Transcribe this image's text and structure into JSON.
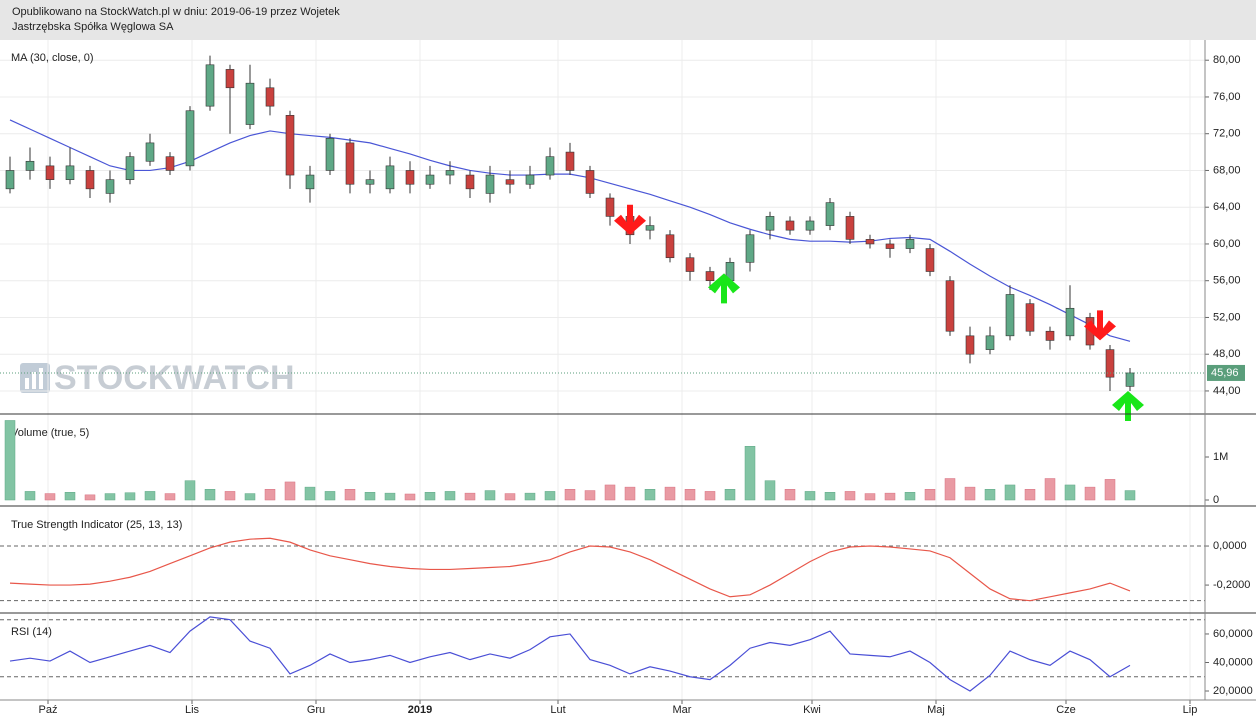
{
  "header": {
    "line1": "Opublikowano na StockWatch.pl w dniu: 2019-06-19 przez Wojetek",
    "line2": "Jastrzębska Spółka Węglowa SA"
  },
  "watermark": "STOCKWATCH",
  "chart_data": [
    {
      "type": "candlestick",
      "title": "MA (30, close, 0)",
      "xlim": [
        -0.5,
        59.75
      ],
      "ylim": [
        41.6,
        82.2
      ],
      "yticks": [
        {
          "value": 44,
          "label": "44,00"
        },
        {
          "value": 48,
          "label": "48,00"
        },
        {
          "value": 52,
          "label": "52,00"
        },
        {
          "value": 56,
          "label": "56,00"
        },
        {
          "value": 60,
          "label": "60,00"
        },
        {
          "value": 64,
          "label": "64,00"
        },
        {
          "value": 68,
          "label": "68,00"
        },
        {
          "value": 72,
          "label": "72,00"
        },
        {
          "value": 76,
          "label": "76,00"
        },
        {
          "value": 80,
          "label": "80,00"
        }
      ],
      "up_color": "#5fa886",
      "down_color": "#c9413e",
      "open": [
        66.0,
        68.0,
        68.5,
        67.0,
        68.0,
        65.5,
        67.0,
        69.0,
        69.5,
        68.5,
        75.0,
        79.0,
        73.0,
        77.0,
        74.0,
        66.0,
        68.0,
        71.0,
        66.5,
        66.0,
        68.0,
        66.5,
        67.5,
        67.5,
        65.5,
        67.0,
        66.5,
        67.5,
        70.0,
        68.0,
        65.0,
        63.0,
        61.5,
        61.0,
        58.5,
        57.0,
        56.0,
        58.0,
        61.5,
        62.5,
        61.5,
        62.0,
        63.0,
        60.5,
        60.0,
        59.5,
        59.5,
        56.0,
        50.0,
        48.5,
        50.0,
        53.5,
        50.5,
        50.0,
        52.0,
        48.5,
        44.5
      ],
      "high": [
        69.5,
        70.5,
        69.5,
        70.5,
        68.5,
        68.0,
        70.0,
        72.0,
        70.0,
        75.0,
        80.5,
        79.5,
        79.5,
        78.0,
        74.5,
        68.5,
        72.0,
        71.5,
        68.0,
        69.5,
        69.0,
        68.5,
        69.0,
        68.0,
        68.5,
        68.0,
        68.5,
        70.5,
        71.0,
        68.5,
        65.5,
        63.5,
        63.0,
        61.5,
        59.0,
        57.5,
        58.5,
        61.5,
        63.5,
        63.0,
        63.0,
        65.0,
        63.5,
        61.0,
        60.5,
        61.0,
        60.0,
        56.5,
        51.0,
        51.0,
        55.5,
        54.0,
        51.0,
        55.5,
        52.5,
        49.0,
        46.5
      ],
      "low": [
        65.5,
        67.0,
        66.0,
        66.5,
        65.0,
        64.5,
        66.5,
        68.5,
        67.5,
        68.0,
        74.5,
        72.0,
        72.5,
        74.0,
        66.0,
        64.5,
        67.5,
        65.5,
        65.5,
        65.5,
        65.5,
        66.0,
        66.5,
        65.0,
        64.5,
        65.5,
        66.0,
        67.0,
        67.5,
        65.0,
        62.0,
        60.0,
        60.5,
        58.0,
        56.0,
        55.0,
        55.5,
        57.0,
        60.5,
        61.0,
        61.0,
        61.5,
        60.0,
        59.5,
        58.5,
        59.0,
        56.5,
        50.0,
        47.0,
        48.0,
        49.5,
        50.0,
        48.5,
        49.5,
        48.5,
        44.0,
        44.0
      ],
      "close": [
        68.0,
        69.0,
        67.0,
        68.5,
        66.0,
        67.0,
        69.5,
        71.0,
        68.0,
        74.5,
        79.5,
        77.0,
        77.5,
        75.0,
        67.5,
        67.5,
        71.5,
        66.5,
        67.0,
        68.5,
        66.5,
        67.5,
        68.0,
        66.0,
        67.5,
        66.5,
        67.5,
        69.5,
        68.0,
        65.5,
        63.0,
        61.0,
        62.0,
        58.5,
        57.0,
        56.0,
        58.0,
        61.0,
        63.0,
        61.5,
        62.5,
        64.5,
        60.5,
        60.0,
        59.5,
        60.5,
        57.0,
        50.5,
        48.0,
        50.0,
        54.5,
        50.5,
        49.5,
        53.0,
        49.0,
        45.5,
        45.96
      ],
      "ma": {
        "color": "#4a56d6",
        "values": [
          73.5,
          72.5,
          71.5,
          70.5,
          69.5,
          68.5,
          68,
          68,
          68.3,
          69,
          70,
          71,
          71.8,
          72.3,
          72,
          71.8,
          71.6,
          71.3,
          71,
          70.4,
          69.8,
          69.1,
          68.5,
          68,
          67.7,
          67.5,
          67.5,
          67.6,
          67.6,
          67.2,
          66.6,
          66,
          65.4,
          64.7,
          64,
          63.2,
          62.3,
          61.6,
          61,
          60.5,
          60.3,
          60.3,
          60.2,
          60.3,
          60.6,
          60.7,
          60.5,
          59.2,
          57.8,
          56.5,
          55.3,
          54.4,
          53.4,
          52.3,
          51.2,
          50,
          49.4
        ]
      },
      "last_price": {
        "value": 45.96,
        "label": "45,96",
        "color": "#5a9e7b"
      },
      "signals": [
        {
          "x": 31,
          "y": 61,
          "type": "sell",
          "color": "#ff1a1a"
        },
        {
          "x": 35.7,
          "y": 56.8,
          "type": "buy",
          "color": "#19e619"
        },
        {
          "x": 54.5,
          "y": 49.5,
          "type": "sell",
          "color": "#ff1a1a"
        },
        {
          "x": 55.9,
          "y": 44.0,
          "type": "buy",
          "color": "#19e619"
        }
      ]
    },
    {
      "type": "bar",
      "title": "Volume (true, 5)",
      "xlim": [
        -0.5,
        59.75
      ],
      "ylim": [
        -116000,
        1977000
      ],
      "yticks": [
        0,
        {
          "value": 1000000,
          "label": "1M"
        }
      ],
      "up_color": "#82c4a4",
      "down_color": "#e99aa3",
      "values": [
        1850000,
        200000,
        150000,
        180000,
        120000,
        150000,
        170000,
        200000,
        150000,
        450000,
        250000,
        200000,
        150000,
        250000,
        420000,
        300000,
        200000,
        250000,
        180000,
        160000,
        140000,
        180000,
        200000,
        160000,
        220000,
        150000,
        160000,
        200000,
        250000,
        220000,
        350000,
        300000,
        250000,
        300000,
        250000,
        200000,
        250000,
        1250000,
        450000,
        250000,
        200000,
        180000,
        200000,
        150000,
        160000,
        180000,
        250000,
        500000,
        300000,
        250000,
        350000,
        250000,
        500000,
        350000,
        300000,
        480000,
        220000
      ]
    },
    {
      "type": "line",
      "title": "True Strength Indicator (25, 13, 13)",
      "xlim": [
        -0.5,
        59.75
      ],
      "ylim": [
        -0.338,
        0.2
      ],
      "yticks": [
        {
          "value": 0,
          "label": "0,0000"
        },
        {
          "value": -0.2,
          "label": "-0,2000"
        }
      ],
      "levels": [
        0,
        -0.28
      ],
      "color": "#e8574a",
      "values": [
        -0.19,
        -0.195,
        -0.2,
        -0.2,
        -0.195,
        -0.18,
        -0.16,
        -0.13,
        -0.09,
        -0.05,
        -0.01,
        0.02,
        0.035,
        0.04,
        0.02,
        -0.02,
        -0.05,
        -0.07,
        -0.09,
        -0.105,
        -0.115,
        -0.12,
        -0.12,
        -0.115,
        -0.11,
        -0.105,
        -0.09,
        -0.07,
        -0.03,
        0.0,
        -0.005,
        -0.03,
        -0.07,
        -0.12,
        -0.17,
        -0.22,
        -0.26,
        -0.25,
        -0.2,
        -0.14,
        -0.08,
        -0.03,
        -0.005,
        0.0,
        -0.005,
        -0.015,
        -0.025,
        -0.06,
        -0.14,
        -0.22,
        -0.27,
        -0.28,
        -0.26,
        -0.24,
        -0.22,
        -0.19,
        -0.23
      ]
    },
    {
      "type": "line",
      "title": "RSI (14)",
      "xlim": [
        -0.5,
        59.75
      ],
      "ylim": [
        13.7,
        74
      ],
      "yticks": [
        {
          "value": 20,
          "label": "20,0000"
        },
        {
          "value": 40,
          "label": "40,0000"
        },
        {
          "value": 60,
          "label": "60,0000"
        }
      ],
      "levels": [
        70,
        30
      ],
      "color": "#4a4fd6",
      "xticks": [
        {
          "value": 1.9,
          "label": "Paź"
        },
        {
          "value": 9.1,
          "label": "Lis"
        },
        {
          "value": 15.3,
          "label": "Gru"
        },
        {
          "value": 20.5,
          "label": "2019"
        },
        {
          "value": 27.4,
          "label": "Lut"
        },
        {
          "value": 33.6,
          "label": "Mar"
        },
        {
          "value": 40.1,
          "label": "Kwi"
        },
        {
          "value": 46.3,
          "label": "Maj"
        },
        {
          "value": 52.8,
          "label": "Cze"
        },
        {
          "value": 59,
          "label": "Lip"
        }
      ],
      "values": [
        41,
        43,
        41,
        48,
        40,
        44,
        48,
        52,
        47,
        62,
        72,
        70,
        55,
        50,
        32,
        38,
        46,
        40,
        42,
        45,
        40,
        44,
        47,
        42,
        46,
        43,
        49,
        58,
        60,
        42,
        38,
        32,
        37,
        34,
        30,
        28,
        38,
        50,
        54,
        52,
        56,
        62,
        46,
        45,
        44,
        48,
        40,
        28,
        20,
        31,
        48,
        42,
        38,
        48,
        42,
        30,
        38
      ]
    }
  ]
}
